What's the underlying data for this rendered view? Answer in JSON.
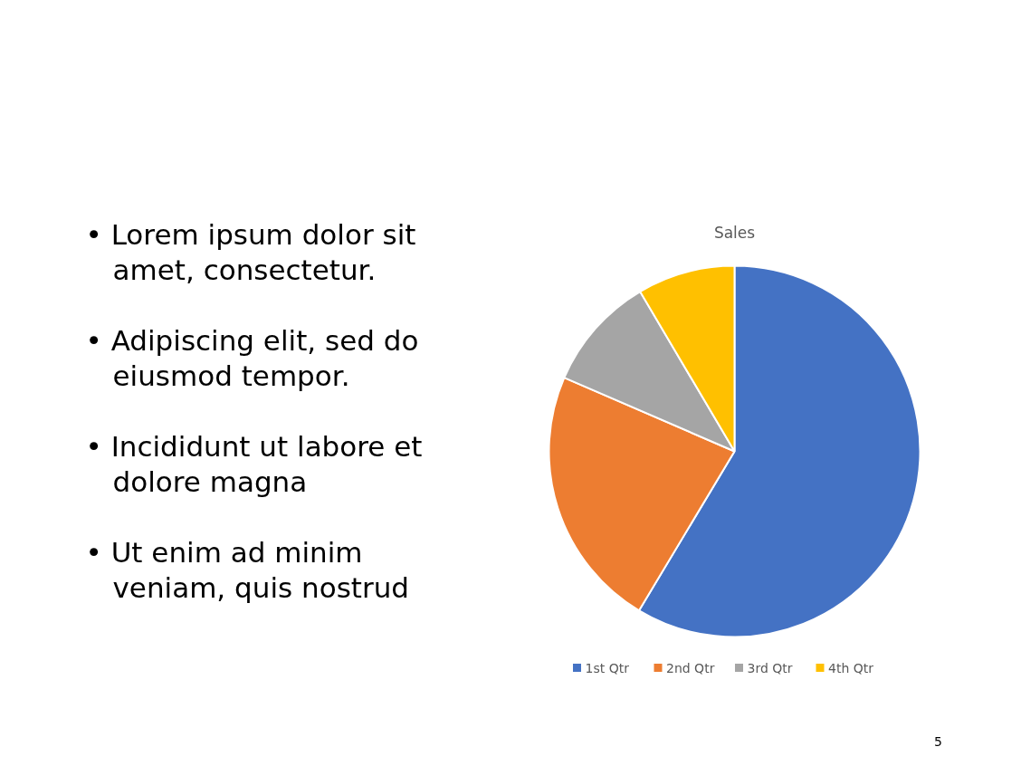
{
  "chart_data": {
    "type": "pie",
    "title": "Sales",
    "categories": [
      "1st Qtr",
      "2nd Qtr",
      "3rd Qtr",
      "4th Qtr"
    ],
    "values": [
      58.6,
      22.9,
      10.0,
      8.5
    ],
    "colors": [
      "#4472c4",
      "#ed7d31",
      "#a5a5a5",
      "#ffc000"
    ],
    "legend": "bottom",
    "annotations": [
      "• Lorem ipsum dolor sit amet, consectetur.",
      "• Adipiscing elit, sed do eiusmod tempor.",
      "• Incididunt ut labore et dolore magna",
      "• Ut enim ad minim veniam, quis nostrud",
      "5"
    ]
  }
}
